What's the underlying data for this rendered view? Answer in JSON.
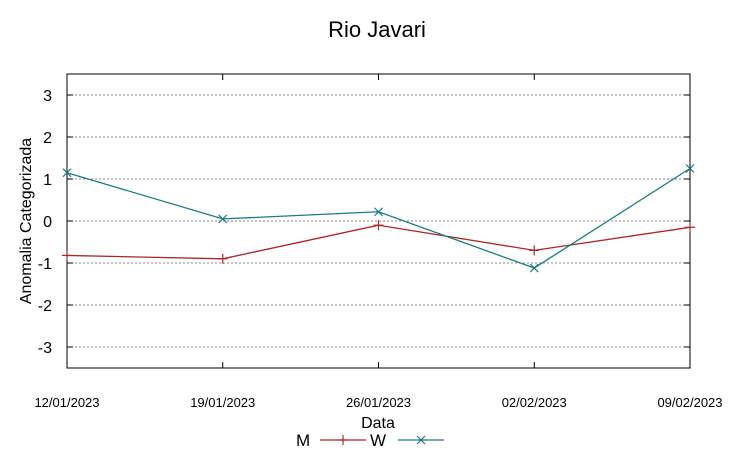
{
  "chart_data": {
    "type": "line",
    "title": "Rio Javari",
    "xlabel": "Data",
    "ylabel": "Anomalia Categorizada",
    "categories": [
      "12/01/2023",
      "19/01/2023",
      "26/01/2023",
      "02/02/2023",
      "09/02/2023"
    ],
    "ylim": [
      -3.5,
      3.5
    ],
    "yticks": [
      "3",
      "2",
      "1",
      "0",
      "-1",
      "-2",
      "-3"
    ],
    "ytick_values": [
      3,
      2,
      1,
      0,
      -1,
      -2,
      -3
    ],
    "grid": true,
    "legend_position": "bottom-center",
    "series": [
      {
        "name": "M",
        "color": "#a52a2a",
        "marker": "plus",
        "values": [
          -0.82,
          -0.9,
          -0.1,
          -0.7,
          -0.15
        ]
      },
      {
        "name": "W",
        "color": "#1e7a80",
        "marker": "x",
        "values": [
          1.15,
          0.05,
          0.22,
          -1.12,
          1.25
        ]
      }
    ]
  }
}
